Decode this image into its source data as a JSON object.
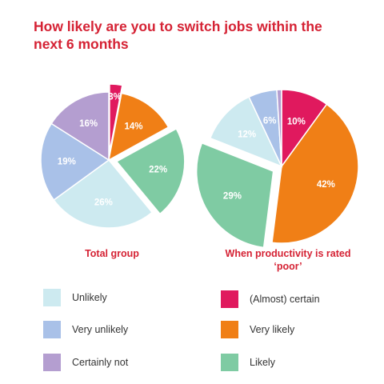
{
  "title": "How likely are you to switch jobs within the next 6 months",
  "chart_data": [
    {
      "type": "pie",
      "title": "Total group",
      "slices": [
        {
          "name": "(Almost) certain",
          "value": 3,
          "label": "3%",
          "color": "#e0195e",
          "exploded": true
        },
        {
          "name": "Very likely",
          "value": 14,
          "label": "14%",
          "color": "#f07f16",
          "exploded": false
        },
        {
          "name": "Likely",
          "value": 22,
          "label": "22%",
          "color": "#7fcba3",
          "exploded": true
        },
        {
          "name": "Unlikely",
          "value": 26,
          "label": "26%",
          "color": "#cdeaf0",
          "exploded": false
        },
        {
          "name": "Very unlikely",
          "value": 19,
          "label": "19%",
          "color": "#a9c1e8",
          "exploded": false
        },
        {
          "name": "Certainly not",
          "value": 16,
          "label": "16%",
          "color": "#b49ed0",
          "exploded": false
        }
      ]
    },
    {
      "type": "pie",
      "title": "When productivity is rated ‘poor’",
      "slices": [
        {
          "name": "(Almost) certain",
          "value": 10,
          "label": "10%",
          "color": "#e0195e",
          "exploded": false
        },
        {
          "name": "Very likely",
          "value": 42,
          "label": "42%",
          "color": "#f07f16",
          "exploded": false
        },
        {
          "name": "Likely",
          "value": 29,
          "label": "29%",
          "color": "#7fcba3",
          "exploded": true
        },
        {
          "name": "Unlikely",
          "value": 12,
          "label": "12%",
          "color": "#cdeaf0",
          "exploded": false
        },
        {
          "name": "Very unlikely",
          "value": 6,
          "label": "6%",
          "color": "#a9c1e8",
          "exploded": false
        },
        {
          "name": "Certainly not",
          "value": 1,
          "label": "1%",
          "color": "#b49ed0",
          "exploded": false
        }
      ]
    }
  ],
  "legend": [
    {
      "label": "Unlikely",
      "color": "#cdeaf0"
    },
    {
      "label": "Very unlikely",
      "color": "#a9c1e8"
    },
    {
      "label": "Certainly not",
      "color": "#b49ed0"
    },
    {
      "label": "(Almost) certain",
      "color": "#e0195e"
    },
    {
      "label": "Very likely",
      "color": "#f07f16"
    },
    {
      "label": "Likely",
      "color": "#7fcba3"
    }
  ]
}
